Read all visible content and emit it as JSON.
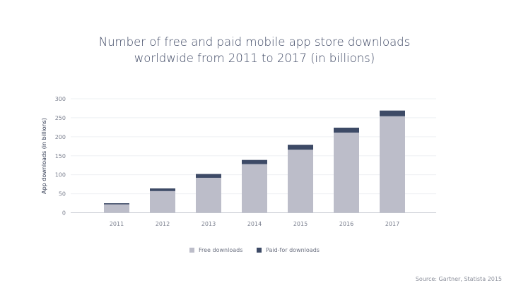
{
  "title": "Number of free and paid mobile app store downloads worldwide from 2011 to 2017 (in billions)",
  "title_lines": [
    "Number of free and paid mobile app store downloads",
    "worldwide from 2011 to 2017 (in billions)"
  ],
  "source": "Source: Gartner, Statista 2015",
  "chart_data": {
    "type": "bar",
    "stacked": true,
    "title": "Number of free and paid mobile app store downloads worldwide from 2011 to 2017 (in billions)",
    "xlabel": "",
    "ylabel": "App downloads (in billions)",
    "categories": [
      "2011",
      "2012",
      "2013",
      "2014",
      "2015",
      "2016",
      "2017"
    ],
    "series": [
      {
        "name": "Free downloads",
        "color": "#bcbdc9",
        "values": [
          22,
          57,
          92,
          128,
          166,
          211,
          254
        ]
      },
      {
        "name": "Paid-for downloads",
        "color": "#3d4a66",
        "values": [
          3,
          7,
          10,
          11,
          13,
          13,
          15
        ]
      }
    ],
    "ylim": [
      0,
      300
    ],
    "yticks": [
      "0",
      "50",
      "100",
      "150",
      "200",
      "250",
      "300"
    ],
    "grid": true,
    "legend_position": "bottom"
  }
}
